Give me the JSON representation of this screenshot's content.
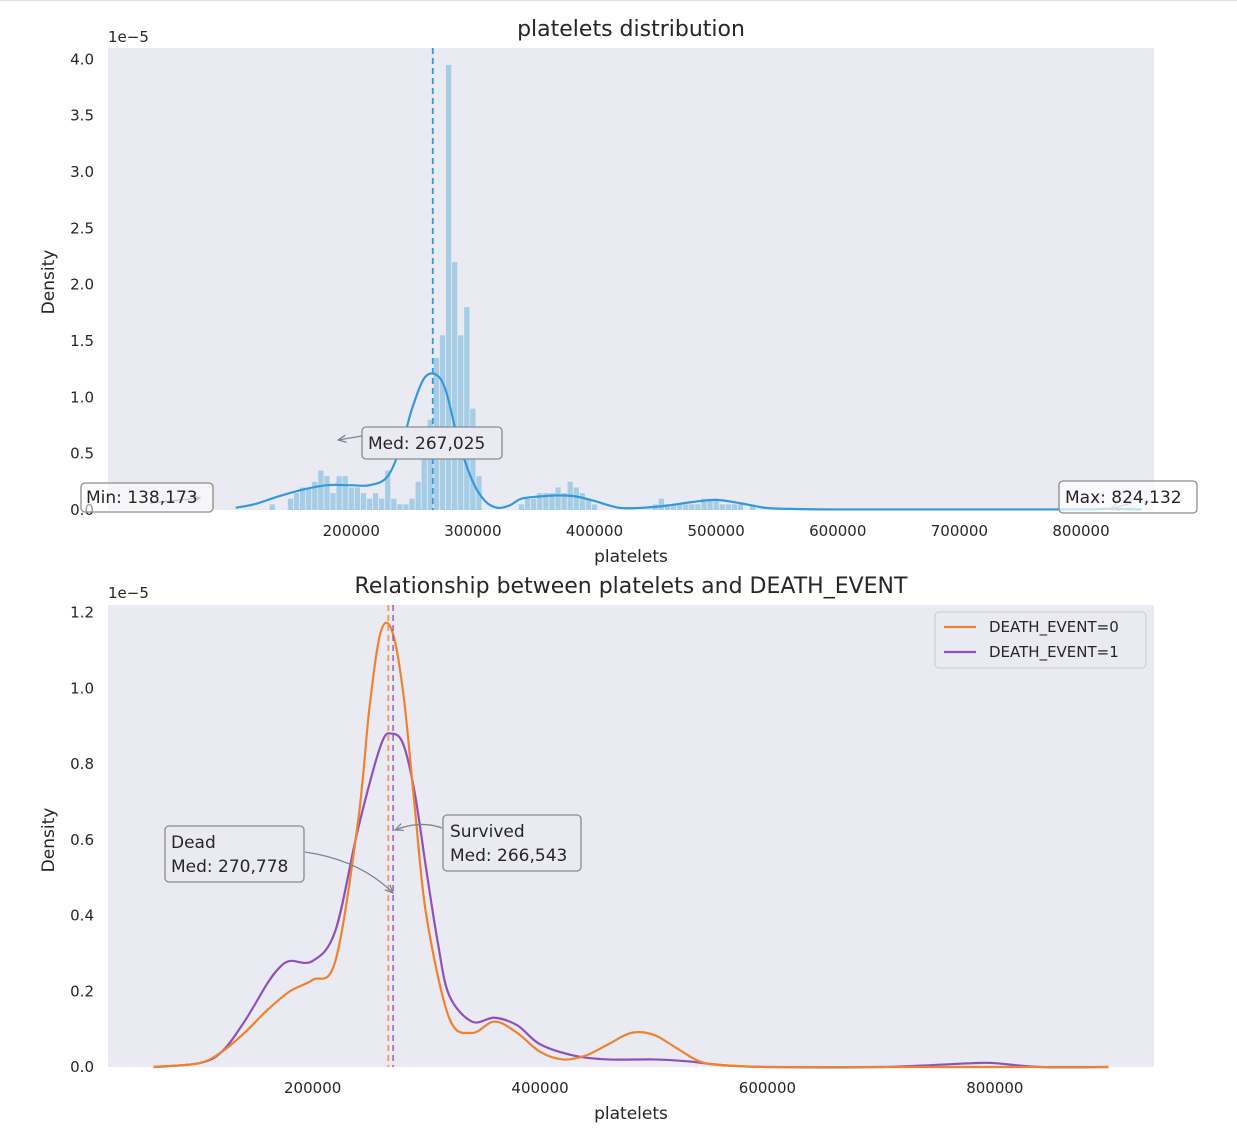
{
  "chart_data": [
    {
      "type": "histogram+kde",
      "title": "platelets distribution",
      "xlabel": "platelets",
      "ylabel": "Density",
      "scale_label": "1e−5",
      "xlim": [
        0,
        860000
      ],
      "ylim": [
        0,
        4.1
      ],
      "xticks": [
        200000,
        300000,
        400000,
        500000,
        600000,
        700000,
        800000
      ],
      "yticks": [
        "0.0",
        "0.5",
        "1.0",
        "1.5",
        "2.0",
        "2.5",
        "3.0",
        "3.5",
        "4.0"
      ],
      "ytick_values": [
        0,
        0.5,
        1.0,
        1.5,
        2.0,
        2.5,
        3.0,
        3.5,
        4.0
      ],
      "grid": false,
      "colors": {
        "bars": "#a6cde6",
        "kde": "#3498db",
        "median_line": "#3498db",
        "background": "#eaeaf2"
      },
      "median": 267025,
      "histogram": {
        "bin_width": 5000,
        "bins": [
          [
            135000,
            0.05
          ],
          [
            150000,
            0.1
          ],
          [
            155000,
            0.15
          ],
          [
            160000,
            0.2
          ],
          [
            165000,
            0.2
          ],
          [
            170000,
            0.25
          ],
          [
            175000,
            0.35
          ],
          [
            180000,
            0.3
          ],
          [
            185000,
            0.15
          ],
          [
            190000,
            0.3
          ],
          [
            195000,
            0.3
          ],
          [
            200000,
            0.2
          ],
          [
            205000,
            0.2
          ],
          [
            210000,
            0.15
          ],
          [
            215000,
            0.1
          ],
          [
            220000,
            0.15
          ],
          [
            225000,
            0.1
          ],
          [
            230000,
            0.35
          ],
          [
            235000,
            0.1
          ],
          [
            240000,
            0.05
          ],
          [
            245000,
            0.05
          ],
          [
            250000,
            0.1
          ],
          [
            255000,
            0.25
          ],
          [
            260000,
            0.45
          ],
          [
            265000,
            0.8
          ],
          [
            270000,
            1.35
          ],
          [
            275000,
            1.55
          ],
          [
            280000,
            3.95
          ],
          [
            285000,
            2.2
          ],
          [
            290000,
            1.55
          ],
          [
            295000,
            1.8
          ],
          [
            300000,
            0.9
          ],
          [
            305000,
            0.3
          ],
          [
            340000,
            0.05
          ],
          [
            345000,
            0.1
          ],
          [
            350000,
            0.1
          ],
          [
            355000,
            0.15
          ],
          [
            360000,
            0.15
          ],
          [
            365000,
            0.15
          ],
          [
            370000,
            0.2
          ],
          [
            375000,
            0.15
          ],
          [
            380000,
            0.25
          ],
          [
            385000,
            0.2
          ],
          [
            390000,
            0.15
          ],
          [
            395000,
            0.1
          ],
          [
            400000,
            0.05
          ],
          [
            450000,
            0.05
          ],
          [
            455000,
            0.1
          ],
          [
            460000,
            0.05
          ],
          [
            465000,
            0.05
          ],
          [
            470000,
            0.05
          ],
          [
            475000,
            0.05
          ],
          [
            480000,
            0.05
          ],
          [
            485000,
            0.05
          ],
          [
            490000,
            0.1
          ],
          [
            495000,
            0.1
          ],
          [
            500000,
            0.1
          ],
          [
            505000,
            0.05
          ],
          [
            510000,
            0.05
          ],
          [
            515000,
            0.05
          ],
          [
            520000,
            0.05
          ],
          [
            530000,
            0.05
          ]
        ]
      },
      "kde": {
        "x": [
          105000,
          120000,
          140000,
          160000,
          180000,
          200000,
          215000,
          230000,
          242000,
          250000,
          260000,
          270000,
          278000,
          288000,
          300000,
          310000,
          320000,
          330000,
          340000,
          355000,
          370000,
          385000,
          400000,
          420000,
          440000,
          460000,
          480000,
          500000,
          520000,
          540000,
          560000,
          600000,
          700000,
          800000,
          820000,
          850000
        ],
        "y": [
          0.02,
          0.05,
          0.12,
          0.18,
          0.22,
          0.22,
          0.22,
          0.3,
          0.6,
          0.9,
          1.17,
          1.2,
          1.05,
          0.62,
          0.25,
          0.08,
          0.02,
          0.04,
          0.1,
          0.12,
          0.13,
          0.12,
          0.08,
          0.02,
          0.02,
          0.04,
          0.07,
          0.09,
          0.06,
          0.02,
          0.01,
          0.005,
          0.005,
          0.005,
          0.01,
          0.005
        ]
      },
      "annotations": [
        {
          "text": "Min: 138,173",
          "x": 138173
        },
        {
          "text": "Med: 267,025",
          "x": 267025
        },
        {
          "text": "Max: 824,132",
          "x": 824132
        }
      ]
    },
    {
      "type": "kde",
      "title": "Relationship between platelets and DEATH_EVENT",
      "xlabel": "platelets",
      "ylabel": "Density",
      "scale_label": "1e−5",
      "xlim": [
        20000,
        940000
      ],
      "ylim": [
        0,
        1.22
      ],
      "xticks": [
        200000,
        400000,
        600000,
        800000
      ],
      "yticks": [
        "0.0",
        "0.2",
        "0.4",
        "0.6",
        "0.8",
        "1.0",
        "1.2"
      ],
      "ytick_values": [
        0,
        0.2,
        0.4,
        0.6,
        0.8,
        1.0,
        1.2
      ],
      "grid": false,
      "legend_position": "top-right",
      "series": [
        {
          "name": "DEATH_EVENT=0",
          "color": "#f0812f",
          "median": 266543,
          "x": [
            60000,
            100000,
            120000,
            140000,
            160000,
            180000,
            200000,
            220000,
            240000,
            250000,
            260000,
            270000,
            280000,
            290000,
            300000,
            320000,
            340000,
            360000,
            380000,
            400000,
            420000,
            440000,
            460000,
            480000,
            500000,
            520000,
            540000,
            560000,
            600000,
            700000,
            800000,
            900000
          ],
          "y": [
            0.0,
            0.01,
            0.04,
            0.09,
            0.15,
            0.2,
            0.23,
            0.28,
            0.65,
            0.95,
            1.15,
            1.15,
            0.98,
            0.68,
            0.4,
            0.13,
            0.09,
            0.12,
            0.09,
            0.04,
            0.02,
            0.03,
            0.06,
            0.09,
            0.085,
            0.05,
            0.015,
            0.005,
            0.0,
            0.0,
            0.0,
            0.0
          ]
        },
        {
          "name": "DEATH_EVENT=1",
          "color": "#8e51b8",
          "median": 270778,
          "x": [
            60000,
            100000,
            120000,
            140000,
            160000,
            170000,
            180000,
            200000,
            220000,
            240000,
            260000,
            270000,
            280000,
            290000,
            300000,
            310000,
            320000,
            340000,
            360000,
            380000,
            400000,
            430000,
            460000,
            500000,
            530000,
            560000,
            600000,
            700000,
            780000,
            800000,
            840000,
            900000
          ],
          "y": [
            0.0,
            0.01,
            0.04,
            0.12,
            0.22,
            0.26,
            0.28,
            0.28,
            0.36,
            0.63,
            0.85,
            0.88,
            0.85,
            0.72,
            0.52,
            0.33,
            0.19,
            0.12,
            0.13,
            0.11,
            0.06,
            0.03,
            0.02,
            0.02,
            0.015,
            0.005,
            0.0,
            0.0,
            0.01,
            0.01,
            0.0,
            0.0
          ]
        }
      ],
      "annotations": [
        {
          "text": [
            "Survived",
            "Med: 266,543"
          ],
          "x": 266543
        },
        {
          "text": [
            "Dead",
            "Med: 270,778"
          ],
          "x": 270778
        }
      ]
    }
  ]
}
